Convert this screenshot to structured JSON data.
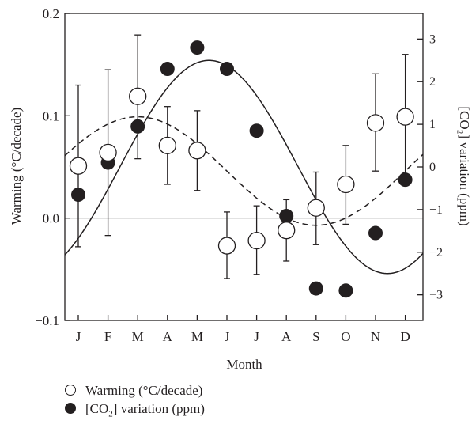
{
  "chart_data": {
    "type": "scatter",
    "categories": [
      "J",
      "F",
      "M",
      "A",
      "M",
      "J",
      "J",
      "A",
      "S",
      "O",
      "N",
      "D"
    ],
    "xlabel": "Month",
    "ylabel": "Warming (°C/decade)",
    "y2label": "[CO₂] variation (ppm)",
    "ylim": [
      -0.1,
      0.2
    ],
    "y2lim": [
      -3.6,
      3.6
    ],
    "yticks": [
      "0.2",
      "0.1",
      "0.0",
      "−0.1"
    ],
    "y2ticks": [
      "3",
      "2",
      "1",
      "0",
      "−1",
      "−2",
      "−3"
    ],
    "series": [
      {
        "name": "Warming (°C/decade)",
        "axis": "left",
        "marker": "open-circle",
        "values": [
          0.051,
          0.064,
          0.119,
          0.071,
          0.066,
          -0.027,
          -0.022,
          -0.012,
          0.01,
          0.033,
          0.093,
          0.099
        ],
        "err_low": [
          -0.028,
          -0.017,
          0.058,
          0.033,
          0.027,
          -0.059,
          -0.055,
          -0.042,
          -0.026,
          -0.006,
          0.046,
          0.038
        ],
        "err_high": [
          0.13,
          0.145,
          0.179,
          0.109,
          0.105,
          0.006,
          0.012,
          0.018,
          0.045,
          0.071,
          0.141,
          0.16
        ]
      },
      {
        "name": "[CO₂] variation (ppm)",
        "axis": "right",
        "marker": "filled-circle",
        "values": [
          -0.65,
          0.1,
          0.95,
          2.3,
          2.8,
          2.3,
          0.85,
          -1.15,
          -2.85,
          -2.9,
          -1.55,
          -0.3
        ]
      }
    ],
    "fits": [
      {
        "axis": "right",
        "style": "solid",
        "amplitude": 2.5,
        "offset": 0.0,
        "peak_month": 4.4
      },
      {
        "axis": "left",
        "style": "dashed",
        "amplitude": 0.053,
        "offset": 0.046,
        "peak_month": 2.0
      }
    ],
    "reference_line": {
      "axis": "left",
      "value": 0.0,
      "color": "#b3b3b3"
    }
  },
  "legend": {
    "warming_label": "Warming (°C/decade)",
    "co2_prefix": "[CO",
    "co2_sub": "2",
    "co2_suffix": "] variation (ppm)"
  }
}
